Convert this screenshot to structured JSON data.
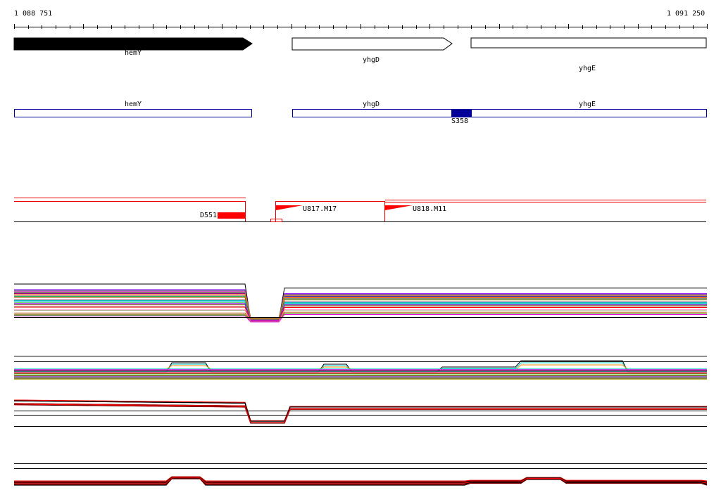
{
  "ruler": {
    "start_label": "1 088 751",
    "end_label": "1 091 250"
  },
  "genes": [
    {
      "name": "hemY",
      "strand": "forward",
      "filled": true
    },
    {
      "name": "yhgD",
      "strand": "forward",
      "filled": false
    },
    {
      "name": "yhgE",
      "strand": "forward",
      "filled": false
    }
  ],
  "cds": [
    {
      "name": "hemY"
    },
    {
      "name": "yhgD"
    },
    {
      "name": "yhgE"
    }
  ],
  "site_label": "S358",
  "features": [
    {
      "name": "D551"
    },
    {
      "name": "U817.M17"
    },
    {
      "name": "U818.M11"
    }
  ],
  "colors": {
    "gene_fill": "#000000",
    "cds_border": "#000099",
    "site_fill": "#000099",
    "feature_red": "#ff0000",
    "trace_black": "#000000",
    "trace_red": "#ee0000"
  }
}
